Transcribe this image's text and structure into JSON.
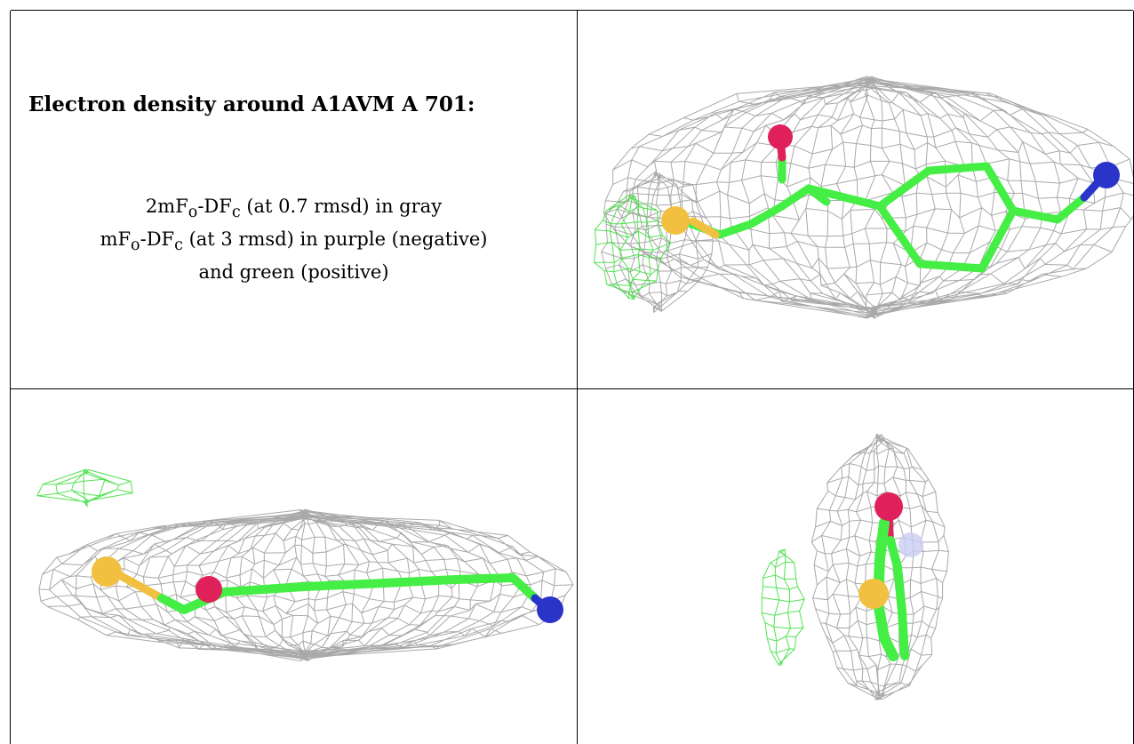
{
  "panel": {
    "title": "Electron density around A1AVM A 701:",
    "legend": {
      "line1_a": "2mF",
      "line1_sub_o": "o",
      "line1_b": "-DF",
      "line1_sub_c": "c",
      "line1_c": " (at 0.7 rmsd) in gray",
      "line2_a": "mF",
      "line2_sub_o": "o",
      "line2_b": "-DF",
      "line2_sub_c": "c",
      "line2_c": " (at 3 rmsd) in purple (negative)",
      "line3": "and green (positive)"
    }
  },
  "colors": {
    "density_gray": "#9a9a9a",
    "positive_green": "#33dd33",
    "bond_green": "#44ee44",
    "oxygen": "#e0205a",
    "sulfur": "#f2c040",
    "nitrogen": "#2a34c8"
  },
  "views": [
    {
      "name": "view-top-right",
      "atoms": [
        "oxygen-atom",
        "sulfur-atom",
        "nitrogen-atom"
      ]
    },
    {
      "name": "view-bottom-left",
      "atoms": [
        "sulfur-atom",
        "oxygen-atom",
        "nitrogen-atom"
      ]
    },
    {
      "name": "view-bottom-right",
      "atoms": [
        "oxygen-atom",
        "sulfur-atom"
      ]
    }
  ]
}
